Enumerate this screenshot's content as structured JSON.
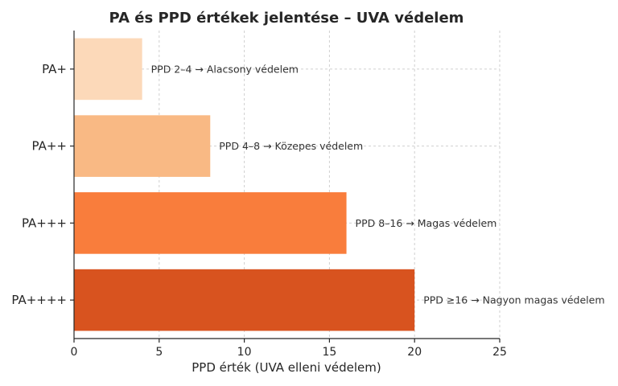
{
  "chart_data": {
    "type": "bar",
    "orientation": "horizontal",
    "title": "PA és PPD értékek jelentése – UVA védelem",
    "xlabel": "PPD érték (UVA elleni védelem)",
    "ylabel": "",
    "xlim": [
      0,
      25
    ],
    "xticks": [
      0,
      5,
      10,
      15,
      20,
      25
    ],
    "grid": true,
    "categories": [
      "PA+",
      "PA++",
      "PA+++",
      "PA++++"
    ],
    "values": [
      4,
      8,
      16,
      20
    ],
    "labels": [
      "PPD 2–4 → Alacsony védelem",
      "PPD 4–8 → Közepes védelem",
      "PPD 8–16 → Magas védelem",
      "PPD ≥16 → Nagyon magas védelem"
    ],
    "colors": [
      "#fcd9b9",
      "#f9b984",
      "#f97d3c",
      "#d8531f"
    ]
  }
}
